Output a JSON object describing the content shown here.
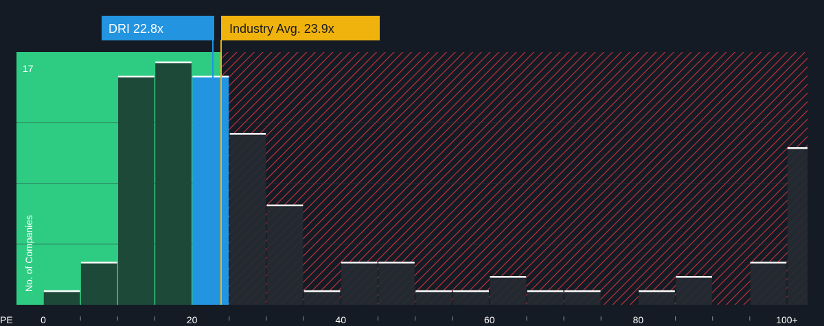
{
  "chart_data": {
    "type": "bar",
    "xlabel": "PE",
    "ylabel": "No. of Companies",
    "x_tick_labels": [
      "0",
      "20",
      "40",
      "60",
      "80",
      "100+"
    ],
    "y_tick_labels": [
      "17"
    ],
    "bin_width": 5,
    "bins": [
      {
        "start": 0,
        "count": 1
      },
      {
        "start": 5,
        "count": 3
      },
      {
        "start": 10,
        "count": 16
      },
      {
        "start": 15,
        "count": 17
      },
      {
        "start": 20,
        "count": 16
      },
      {
        "start": 25,
        "count": 12
      },
      {
        "start": 30,
        "count": 7
      },
      {
        "start": 35,
        "count": 1
      },
      {
        "start": 40,
        "count": 3
      },
      {
        "start": 45,
        "count": 3
      },
      {
        "start": 50,
        "count": 1
      },
      {
        "start": 55,
        "count": 1
      },
      {
        "start": 60,
        "count": 2
      },
      {
        "start": 65,
        "count": 1
      },
      {
        "start": 70,
        "count": 1
      },
      {
        "start": 75,
        "count": 0
      },
      {
        "start": 80,
        "count": 1
      },
      {
        "start": 85,
        "count": 2
      },
      {
        "start": 90,
        "count": 0
      },
      {
        "start": 95,
        "count": 3
      },
      {
        "start": 100,
        "count": 11
      }
    ],
    "highlight_bin_start": 20,
    "company": {
      "ticker": "DRI",
      "pe": 22.8,
      "label": "DRI 22.8x",
      "color": "#2394e0"
    },
    "industry": {
      "pe": 23.9,
      "label": "Industry Avg. 23.9x",
      "color": "#f0b30e"
    },
    "xlim": [
      0,
      104
    ],
    "ylim": [
      0,
      17.5
    ],
    "colors": {
      "background": "#151b24",
      "below_zone": "#2ecc82",
      "bar_below": "#1d4938",
      "bar_above": "#252a33",
      "hatch": "#c9343f",
      "bar_top": "#ffffff",
      "grid": "#2b323d"
    }
  }
}
